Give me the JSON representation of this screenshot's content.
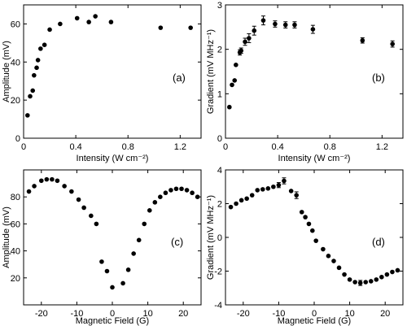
{
  "chart_data": [
    {
      "id": "a",
      "type": "scatter",
      "panel_label": "(a)",
      "xlabel": "Intensity (W cm⁻²)",
      "ylabel": "Amplitude (mV)",
      "xlim": [
        0,
        1.36
      ],
      "ylim": [
        0,
        70
      ],
      "xticks": [
        0,
        0.4,
        0.8,
        1.2
      ],
      "xtick_labels": [
        "0",
        "0.4",
        "0.8",
        "1.2"
      ],
      "yticks": [
        0,
        20,
        40,
        60
      ],
      "ytick_labels": [
        "0",
        "20",
        "40",
        "60"
      ],
      "series": [
        {
          "x": [
            0.03,
            0.05,
            0.07,
            0.08,
            0.1,
            0.11,
            0.13,
            0.16,
            0.2,
            0.28,
            0.41,
            0.5,
            0.55,
            0.67,
            1.05,
            1.28
          ],
          "y": [
            12,
            22,
            25,
            33,
            37,
            41,
            47,
            49,
            57,
            60,
            63,
            61,
            64,
            61,
            58,
            58
          ],
          "err": [
            0,
            0,
            0,
            0,
            0,
            0,
            0,
            0,
            0,
            0,
            0,
            0,
            0,
            0,
            0,
            0
          ]
        }
      ]
    },
    {
      "id": "b",
      "type": "scatter",
      "panel_label": "(b)",
      "xlabel": "Intensity (W cm⁻²)",
      "ylabel": "Gradient (mV MHz⁻¹)",
      "xlim": [
        0,
        1.36
      ],
      "ylim": [
        0,
        3
      ],
      "xticks": [
        0,
        0.4,
        0.8,
        1.2
      ],
      "xtick_labels": [
        "0",
        "0.4",
        "0.8",
        "1.2"
      ],
      "yticks": [
        0,
        1,
        2,
        3
      ],
      "ytick_labels": [
        "0",
        "1",
        "2",
        "3"
      ],
      "series": [
        {
          "x": [
            0.03,
            0.05,
            0.07,
            0.08,
            0.11,
            0.12,
            0.15,
            0.18,
            0.22,
            0.29,
            0.38,
            0.46,
            0.53,
            0.67,
            1.05,
            1.28
          ],
          "y": [
            0.7,
            1.2,
            1.3,
            1.65,
            1.93,
            1.97,
            2.17,
            2.25,
            2.42,
            2.65,
            2.57,
            2.55,
            2.55,
            2.45,
            2.2,
            2.12
          ],
          "err": [
            0,
            0,
            0,
            0,
            0.06,
            0.06,
            0.08,
            0.1,
            0.1,
            0.1,
            0.07,
            0.07,
            0.07,
            0.09,
            0.06,
            0.07
          ]
        }
      ]
    },
    {
      "id": "c",
      "type": "scatter",
      "panel_label": "(c)",
      "xlabel": "Magnetic Field (G)",
      "ylabel": "Amplitude (mV)",
      "xlim": [
        -25,
        25
      ],
      "ylim": [
        0,
        100
      ],
      "xticks": [
        -20,
        -10,
        0,
        10,
        20
      ],
      "xtick_labels": [
        "-20",
        "-10",
        "0",
        "10",
        "20"
      ],
      "yticks": [
        20,
        40,
        60,
        80
      ],
      "ytick_labels": [
        "20",
        "40",
        "60",
        "80"
      ],
      "series": [
        {
          "x": [
            -23.5,
            -22,
            -20,
            -18.5,
            -17,
            -15.5,
            -13.5,
            -11.5,
            -9.5,
            -8,
            -6,
            -4.5,
            -3,
            -1.5,
            0,
            3,
            4.5,
            6,
            7.5,
            9,
            10.5,
            12,
            13.5,
            15,
            16.5,
            18,
            19.5,
            21,
            22.5,
            24
          ],
          "y": [
            84,
            88,
            92,
            93,
            93,
            92,
            88,
            84,
            78,
            72,
            66,
            60,
            32,
            25,
            13,
            16,
            26,
            38,
            48,
            60,
            70,
            76,
            80,
            83,
            85,
            86,
            86,
            85,
            83,
            80
          ],
          "err": [
            0,
            0,
            0,
            0,
            0,
            0,
            0,
            0,
            0,
            0,
            0,
            0,
            0,
            0,
            0,
            0,
            0,
            0,
            0,
            0,
            0,
            0,
            0,
            0,
            0,
            0,
            0,
            0,
            0,
            0
          ]
        }
      ]
    },
    {
      "id": "d",
      "type": "scatter",
      "panel_label": "(d)",
      "xlabel": "Magnetic Field (G)",
      "ylabel": "Gradient (mV MHz⁻¹)",
      "xlim": [
        -25,
        25
      ],
      "ylim": [
        -4,
        4
      ],
      "xticks": [
        -20,
        -10,
        0,
        10,
        20
      ],
      "xtick_labels": [
        "-20",
        "-10",
        "0",
        "10",
        "20"
      ],
      "yticks": [
        -4,
        -2,
        0,
        2,
        4
      ],
      "ytick_labels": [
        "-4",
        "-2",
        "0",
        "2",
        "4"
      ],
      "series": [
        {
          "x": [
            -23.5,
            -22,
            -20.5,
            -19,
            -17.5,
            -16,
            -14.5,
            -13,
            -11.5,
            -10,
            -8.5,
            -6.5,
            -5,
            -3.5,
            -2.5,
            -1.5,
            -0.5,
            0.5,
            2.5,
            4,
            5.5,
            7,
            8.5,
            10,
            11.5,
            13,
            14.5,
            16,
            17.5,
            19,
            20.5,
            22,
            23.5
          ],
          "y": [
            1.8,
            2,
            2.2,
            2.3,
            2.5,
            2.8,
            2.85,
            2.9,
            3,
            3.1,
            3.35,
            2.75,
            2.5,
            1.5,
            1.2,
            0.8,
            0.4,
            -0.2,
            -0.7,
            -1.1,
            -1.4,
            -1.8,
            -2.2,
            -2.5,
            -2.65,
            -2.7,
            -2.65,
            -2.6,
            -2.5,
            -2.35,
            -2.2,
            -2.05,
            -1.95
          ],
          "err": [
            0,
            0,
            0,
            0,
            0,
            0,
            0,
            0,
            0,
            0.15,
            0.18,
            0,
            0.2,
            0,
            0,
            0,
            0,
            0,
            0,
            0,
            0,
            0,
            0,
            0,
            0,
            0.15,
            0,
            0,
            0,
            0,
            0,
            0,
            0
          ]
        }
      ]
    }
  ]
}
